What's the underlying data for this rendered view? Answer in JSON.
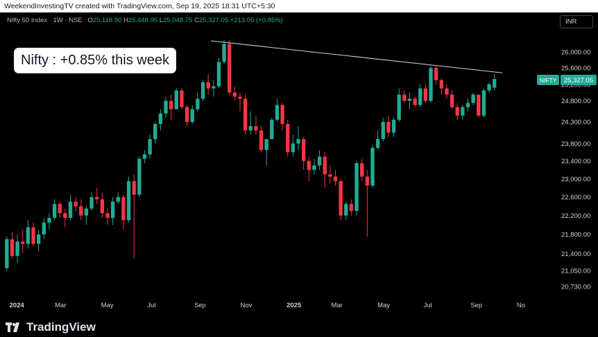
{
  "header": {
    "credit": "WeekendInvestingTV created with TradingView.com, Sep 19, 2025 18:31 UTC+5:30"
  },
  "legend": {
    "symbol": "Nifty 50 Index · 1W · NSE",
    "open_label": "O",
    "open": "25,118.90",
    "high_label": "H",
    "high": "25,448.95",
    "low_label": "L",
    "low": "25,048.75",
    "close_label": "C",
    "close": "25,327.05",
    "change": "+213.05 (+0.85%)"
  },
  "currency_button": "INR",
  "callout": "Nifty : +0.85% this week",
  "price_tag": {
    "symbol": "NIFTY",
    "value": "25,327.05"
  },
  "brand": {
    "name": "TradingView",
    "icon": "tradingview-logo-icon"
  },
  "colors": {
    "up": "#22ab94",
    "down": "#f23645",
    "background": "#000000",
    "trendline": "#d1d4dc"
  },
  "chart_data": {
    "type": "candlestick",
    "interval": "1W",
    "x_range": [
      "2023-12-25",
      "2025-11-24"
    ],
    "y_scale": "log",
    "yticks": [
      20730,
      21050,
      21400,
      21800,
      22200,
      22600,
      23000,
      23400,
      23800,
      24300,
      24800,
      25200,
      25600,
      26000
    ],
    "ytick_labels": [
      "20,730.00",
      "21,050.00",
      "21,400.00",
      "21,800.00",
      "22,200.00",
      "22,600.00",
      "23,000.00",
      "23,400.00",
      "23,800.00",
      "24,300.00",
      "24,800.00",
      "25,200.00",
      "25,600.00",
      "26,000.00"
    ],
    "xticks": [
      {
        "date": "2024-01-01",
        "label": "2024",
        "bold": true
      },
      {
        "date": "2024-03-01",
        "label": "Mar"
      },
      {
        "date": "2024-05-01",
        "label": "May"
      },
      {
        "date": "2024-07-01",
        "label": "Jul"
      },
      {
        "date": "2024-09-01",
        "label": "Sep"
      },
      {
        "date": "2024-11-01",
        "label": "Nov"
      },
      {
        "date": "2025-01-01",
        "label": "2025",
        "bold": true
      },
      {
        "date": "2025-03-01",
        "label": "Mar"
      },
      {
        "date": "2025-05-01",
        "label": "May"
      },
      {
        "date": "2025-07-01",
        "label": "Jul"
      },
      {
        "date": "2025-09-01",
        "label": "Sep"
      },
      {
        "date": "2025-11-01",
        "label": "No"
      }
    ],
    "candles": [
      [
        21100,
        21750,
        21050,
        21700
      ],
      [
        21700,
        21850,
        21300,
        21350
      ],
      [
        21350,
        21800,
        21200,
        21650
      ],
      [
        21650,
        21900,
        21400,
        21600
      ],
      [
        21600,
        22100,
        21500,
        21950
      ],
      [
        21950,
        22050,
        21550,
        21600
      ],
      [
        21600,
        21900,
        21450,
        21800
      ],
      [
        21800,
        22150,
        21700,
        22050
      ],
      [
        22050,
        22250,
        21900,
        22150
      ],
      [
        22150,
        22550,
        22100,
        22450
      ],
      [
        22450,
        22500,
        22150,
        22250
      ],
      [
        22250,
        22350,
        21950,
        22150
      ],
      [
        22150,
        22650,
        22100,
        22500
      ],
      [
        22500,
        22600,
        22300,
        22400
      ],
      [
        22400,
        22550,
        22100,
        22200
      ],
      [
        22200,
        22400,
        22000,
        22350
      ],
      [
        22350,
        22700,
        22300,
        22600
      ],
      [
        22600,
        22800,
        22450,
        22550
      ],
      [
        22550,
        22700,
        22150,
        22250
      ],
      [
        22250,
        22350,
        22000,
        22150
      ],
      [
        22150,
        22600,
        22000,
        22500
      ],
      [
        22500,
        22700,
        22450,
        22600
      ],
      [
        22600,
        22650,
        21900,
        22100
      ],
      [
        22100,
        23050,
        22050,
        22950
      ],
      [
        22950,
        23100,
        21300,
        22650
      ],
      [
        22650,
        23500,
        22600,
        23450
      ],
      [
        23450,
        23650,
        23350,
        23550
      ],
      [
        23550,
        24000,
        23450,
        23900
      ],
      [
        23900,
        24300,
        23800,
        24250
      ],
      [
        24250,
        24600,
        24100,
        24500
      ],
      [
        24500,
        24900,
        24400,
        24800
      ],
      [
        24800,
        24950,
        24350,
        24600
      ],
      [
        24600,
        25100,
        24600,
        25050
      ],
      [
        25050,
        25100,
        24600,
        24650
      ],
      [
        24650,
        24700,
        24200,
        24300
      ],
      [
        24300,
        24700,
        24250,
        24600
      ],
      [
        24600,
        25000,
        24550,
        24850
      ],
      [
        24850,
        25300,
        24800,
        25250
      ],
      [
        25250,
        25450,
        24950,
        25100
      ],
      [
        25100,
        25300,
        24900,
        25150
      ],
      [
        25150,
        25850,
        25100,
        25750
      ],
      [
        25750,
        26300,
        25700,
        26200
      ],
      [
        26200,
        26300,
        24950,
        25000
      ],
      [
        25000,
        25150,
        24800,
        24900
      ],
      [
        24900,
        25000,
        24550,
        24850
      ],
      [
        24850,
        24950,
        24000,
        24100
      ],
      [
        24100,
        24550,
        24000,
        24200
      ],
      [
        24200,
        24450,
        24000,
        24100
      ],
      [
        24100,
        24200,
        23600,
        23650
      ],
      [
        23650,
        23900,
        23300,
        23900
      ],
      [
        23900,
        24400,
        23900,
        24350
      ],
      [
        24350,
        24850,
        24300,
        24700
      ],
      [
        24700,
        24750,
        24100,
        24250
      ],
      [
        24250,
        24350,
        23500,
        23600
      ],
      [
        23600,
        24000,
        23500,
        23800
      ],
      [
        23800,
        24200,
        23650,
        23900
      ],
      [
        23900,
        23950,
        23200,
        23400
      ],
      [
        23400,
        23500,
        22950,
        23200
      ],
      [
        23200,
        23450,
        23100,
        23300
      ],
      [
        23300,
        23650,
        23200,
        23500
      ],
      [
        23500,
        23600,
        22800,
        23100
      ],
      [
        23100,
        23300,
        22900,
        23050
      ],
      [
        23050,
        23200,
        22850,
        22950
      ],
      [
        22950,
        23000,
        22100,
        22200
      ],
      [
        22200,
        22500,
        22100,
        22450
      ],
      [
        22450,
        22550,
        22200,
        22300
      ],
      [
        22300,
        23400,
        22200,
        23350
      ],
      [
        23350,
        23450,
        22950,
        23050
      ],
      [
        23050,
        23200,
        21750,
        22850
      ],
      [
        22850,
        23750,
        22800,
        23700
      ],
      [
        23700,
        24100,
        23650,
        23900
      ],
      [
        23900,
        24400,
        23850,
        24300
      ],
      [
        24300,
        24450,
        23950,
        24050
      ],
      [
        24050,
        24400,
        23950,
        24350
      ],
      [
        24350,
        25100,
        24300,
        24950
      ],
      [
        24950,
        25050,
        24750,
        24800
      ],
      [
        24800,
        25000,
        24600,
        24850
      ],
      [
        24850,
        24900,
        24650,
        24700
      ],
      [
        24700,
        25200,
        24650,
        25100
      ],
      [
        25100,
        25200,
        24750,
        24800
      ],
      [
        24800,
        25650,
        24750,
        25600
      ],
      [
        25600,
        25650,
        25200,
        25300
      ],
      [
        25300,
        25350,
        24950,
        25100
      ],
      [
        25100,
        25200,
        24850,
        24950
      ],
      [
        24950,
        25050,
        24600,
        24650
      ],
      [
        24650,
        24750,
        24350,
        24450
      ],
      [
        24450,
        24700,
        24350,
        24650
      ],
      [
        24650,
        24850,
        24550,
        24750
      ],
      [
        24750,
        25000,
        24700,
        24950
      ],
      [
        24950,
        24950,
        24400,
        24450
      ],
      [
        24450,
        25100,
        24400,
        25050
      ],
      [
        25050,
        25250,
        25000,
        25200
      ],
      [
        25118.9,
        25448.95,
        25048.75,
        25327.05
      ]
    ],
    "trendline": {
      "from": {
        "date": "2024-09-23",
        "value": 26280
      },
      "to": {
        "date": "2025-10-13",
        "value": 25480
      }
    }
  }
}
